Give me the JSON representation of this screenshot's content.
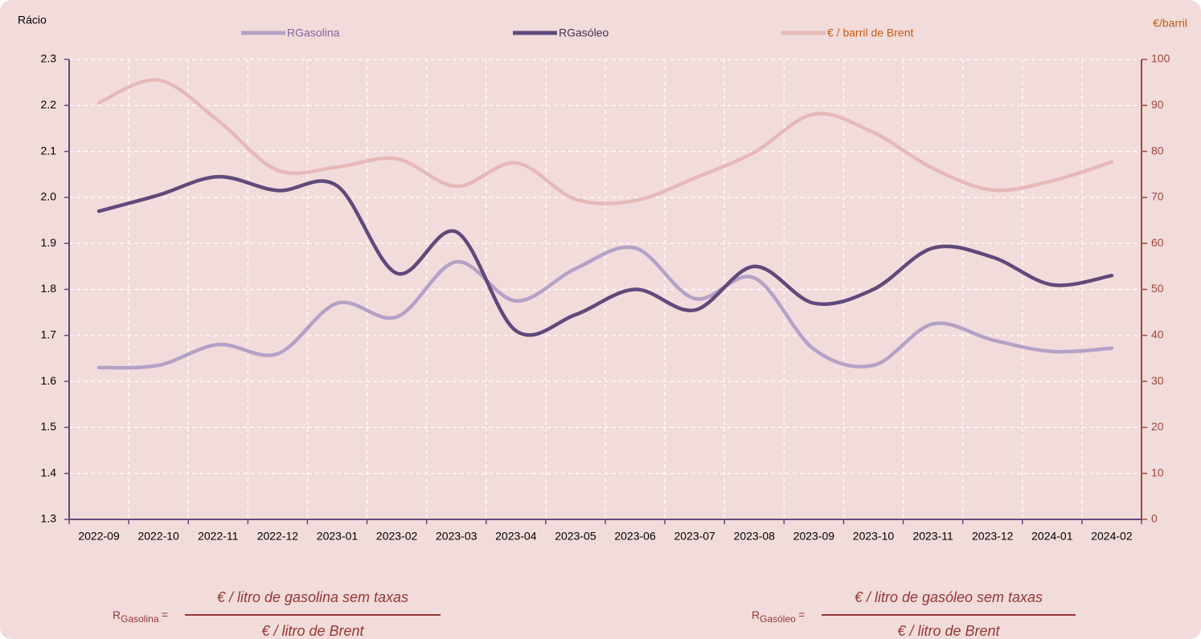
{
  "chart_data": {
    "type": "line",
    "y_label": "Rácio",
    "y2_label": "€/barril",
    "categories": [
      "2022-09",
      "2022-10",
      "2022-11",
      "2022-12",
      "2023-01",
      "2023-02",
      "2023-03",
      "2023-04",
      "2023-05",
      "2023-06",
      "2023-07",
      "2023-08",
      "2023-09",
      "2023-10",
      "2023-11",
      "2023-12",
      "2024-01",
      "2024-02"
    ],
    "series": [
      {
        "name": "€ / barril de Brent",
        "color": "#e6b9b8",
        "axis": "y2",
        "values": [
          90.6,
          95.5,
          86.7,
          75.9,
          76.6,
          78.4,
          72.4,
          77.5,
          69.6,
          69.3,
          74.2,
          79.8,
          88.1,
          84.1,
          76.3,
          71.6,
          73.6,
          77.7
        ]
      },
      {
        "name": "RGasolina",
        "color": "#b3a2c7",
        "values": [
          1.63,
          1.635,
          1.68,
          1.66,
          1.77,
          1.74,
          1.86,
          1.775,
          1.845,
          1.89,
          1.78,
          1.825,
          1.67,
          1.635,
          1.725,
          1.69,
          1.665,
          1.672
        ]
      },
      {
        "name": "RGasóleo",
        "color": "#604a7b",
        "values": [
          1.97,
          2.005,
          2.045,
          2.015,
          2.025,
          1.835,
          1.925,
          1.71,
          1.745,
          1.8,
          1.755,
          1.85,
          1.77,
          1.8,
          1.89,
          1.87,
          1.81,
          1.83
        ]
      }
    ],
    "ylim": [
      1.3,
      2.3
    ],
    "yticks": [
      1.3,
      1.4,
      1.5,
      1.6,
      1.7,
      1.8,
      1.9,
      {
        "value": 2,
        "label": "2.0"
      },
      2.1,
      2.2,
      2.3
    ],
    "y2lim": [
      0,
      100
    ],
    "y2ticks": [
      0,
      10,
      20,
      30,
      40,
      50,
      60,
      70,
      80,
      90,
      100
    ],
    "grid": true
  },
  "formulas": [
    {
      "symbol": "R",
      "subscript": "Gasolina",
      "operator": "=",
      "numerator": "€ / litro de gasolina sem taxas",
      "denominator": "€ / litro de Brent"
    },
    {
      "symbol": "R",
      "subscript": "Gasóleo",
      "operator": "=",
      "numerator": "€ / litro de gasóleo sem taxas",
      "denominator": "€ / litro de Brent"
    }
  ]
}
